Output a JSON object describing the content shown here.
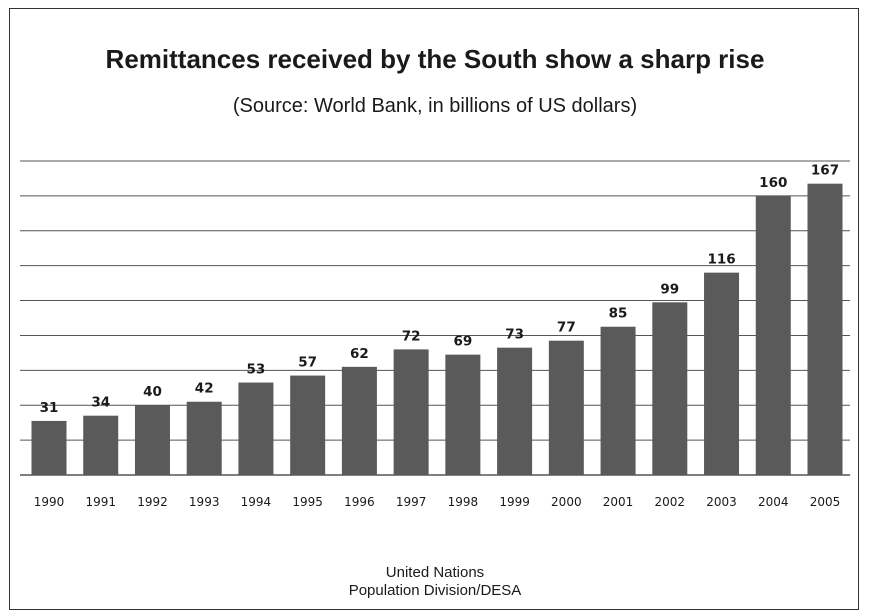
{
  "title": "Remittances received by the South show a sharp rise",
  "subtitle": "(Source: World Bank, in billions of US dollars)",
  "footer": {
    "line1": "United Nations",
    "line2": "Population Division/DESA"
  },
  "colors": {
    "bar": "#5a5a5a",
    "grid": "#555555"
  },
  "chart_data": {
    "type": "bar",
    "title": "Remittances received by the South show a sharp rise",
    "subtitle": "(Source: World Bank, in billions of US dollars)",
    "categories": [
      "1990",
      "1991",
      "1992",
      "1993",
      "1994",
      "1995",
      "1996",
      "1997",
      "1998",
      "1999",
      "2000",
      "2001",
      "2002",
      "2003",
      "2004",
      "2005"
    ],
    "values": [
      31,
      34,
      40,
      42,
      53,
      57,
      62,
      72,
      69,
      73,
      77,
      85,
      99,
      116,
      160,
      167
    ],
    "data_labels": [
      "31",
      "34",
      "40",
      "42",
      "53",
      "57",
      "62",
      "72",
      "69",
      "73",
      "77",
      "85",
      "99",
      "116",
      "160",
      "167"
    ],
    "xlabel": "",
    "ylabel": "",
    "ylim": [
      0,
      180
    ],
    "grid": true,
    "legend": "none"
  }
}
